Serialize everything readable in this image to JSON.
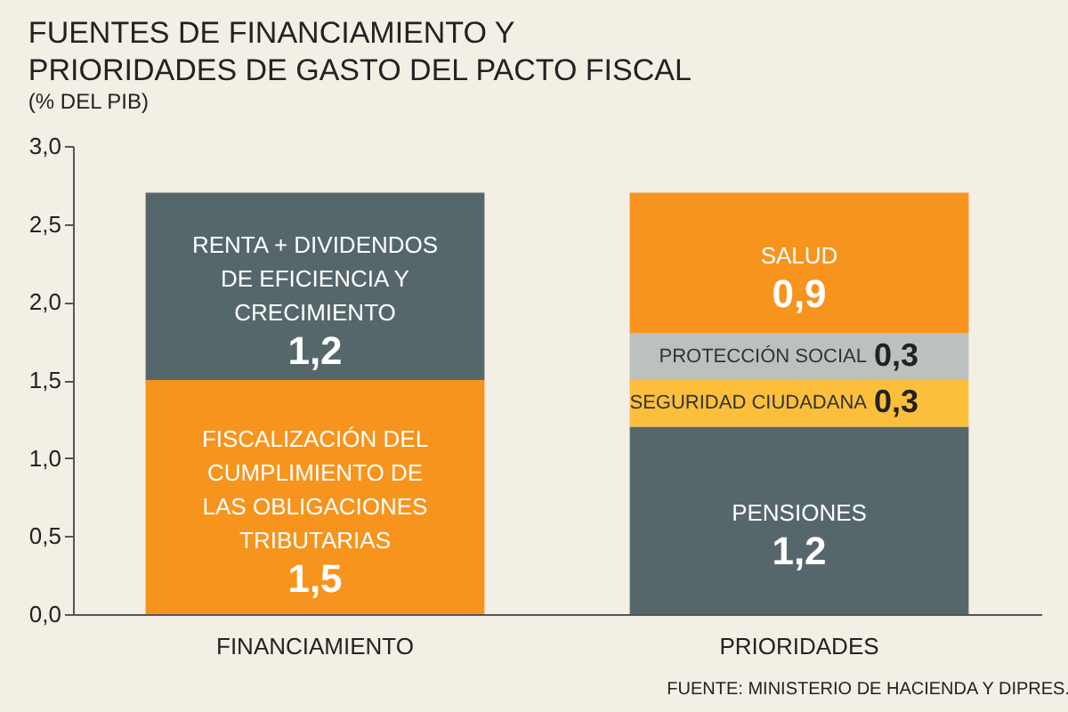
{
  "chart_data": {
    "type": "bar",
    "stacked": true,
    "title": [
      "FUENTES DE FINANCIAMIENTO Y",
      "PRIORIDADES DE GASTO DEL PACTO FISCAL"
    ],
    "subtitle": "(% DEL PIB)",
    "categories": [
      "FINANCIAMIENTO",
      "PRIORIDADES"
    ],
    "series": [
      {
        "name": "FISCALIZACIÓN DEL\nCUMPLIMIENTO DE\nLAS OBLIGACIONES\nTRIBUTARIAS",
        "color": "#f7941d",
        "values": [
          1.5,
          null
        ],
        "value_labels": [
          "1,5",
          null
        ]
      },
      {
        "name": "RENTA + DIVIDENDOS\nDE EFICIENCIA Y\nCRECIMIENTO",
        "color": "#56676b",
        "values": [
          1.2,
          null
        ],
        "value_labels": [
          "1,2",
          null
        ]
      },
      {
        "name": "PENSIONES",
        "color": "#56676b",
        "values": [
          null,
          1.2
        ],
        "value_labels": [
          null,
          "1,2"
        ]
      },
      {
        "name": "SEGURIDAD CIUDADANA",
        "color": "#fbbf3b",
        "values": [
          null,
          0.3
        ],
        "value_labels": [
          null,
          "0,3"
        ]
      },
      {
        "name": "PROTECCIÓN SOCIAL",
        "color": "#bcc1bd",
        "values": [
          null,
          0.3
        ],
        "value_labels": [
          null,
          "0,3"
        ]
      },
      {
        "name": "SALUD",
        "color": "#f7941d",
        "values": [
          null,
          0.9
        ],
        "value_labels": [
          null,
          "0,9"
        ]
      }
    ],
    "ylim": [
      0,
      3
    ],
    "yticks": [
      {
        "value": 0,
        "label": "0,0"
      },
      {
        "value": 0.5,
        "label": "0,5"
      },
      {
        "value": 1,
        "label": "1,0"
      },
      {
        "value": 1.5,
        "label": "1,5"
      },
      {
        "value": 2,
        "label": "2,0"
      },
      {
        "value": 2.5,
        "label": "2,5"
      },
      {
        "value": 3,
        "label": "3,0"
      }
    ],
    "grid": false,
    "legend": false,
    "annotations": [
      "FUENTE: MINISTERIO DE HACIENDA Y DIPRES."
    ]
  }
}
